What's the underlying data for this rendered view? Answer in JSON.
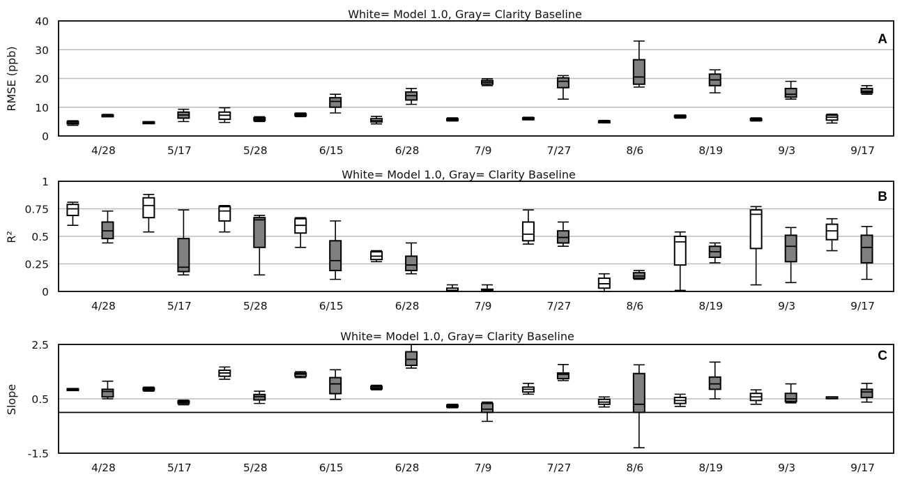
{
  "chart_data": [
    {
      "type": "box",
      "panel_label": "A",
      "title": "White= Model 1.0, Gray= Clarity Baseline",
      "ylabel": "RMSE (ppb)",
      "ylim": [
        0,
        40
      ],
      "yticks": [
        0,
        10,
        20,
        30,
        40
      ],
      "grid": true,
      "categories": [
        "4/28",
        "5/17",
        "5/28",
        "6/15",
        "6/28",
        "7/9",
        "7/27",
        "8/6",
        "8/19",
        "9/3",
        "9/17"
      ],
      "series": [
        {
          "color": "#ffffff",
          "boxes": [
            [
              3.7,
              4.2,
              4.5,
              5.0,
              5.3
            ],
            [
              4.5,
              4.6,
              4.7,
              4.9,
              5.0
            ],
            [
              4.7,
              5.8,
              7.2,
              8.3,
              9.8
            ],
            [
              6.7,
              7.0,
              7.3,
              7.7,
              8.0
            ],
            [
              4.2,
              4.9,
              5.4,
              6.0,
              6.8
            ],
            [
              5.2,
              5.5,
              5.8,
              6.0,
              6.3
            ],
            [
              5.6,
              5.9,
              6.1,
              6.3,
              6.5
            ],
            [
              4.6,
              4.8,
              5.0,
              5.2,
              5.4
            ],
            [
              6.2,
              6.5,
              6.8,
              7.1,
              7.3
            ],
            [
              5.2,
              5.5,
              5.8,
              6.0,
              6.3
            ],
            [
              4.5,
              5.5,
              6.5,
              7.2,
              7.6
            ]
          ]
        },
        {
          "color": "#808080",
          "boxes": [
            [
              7.0,
              7.1,
              7.2,
              7.3,
              7.5
            ],
            [
              5.0,
              6.2,
              7.3,
              8.3,
              9.3
            ],
            [
              5.0,
              5.4,
              5.8,
              6.3,
              6.7
            ],
            [
              8.0,
              10.0,
              12.0,
              13.3,
              14.5
            ],
            [
              11.0,
              12.5,
              14.0,
              15.3,
              16.5
            ],
            [
              17.5,
              18.0,
              18.7,
              19.3,
              19.9
            ],
            [
              12.8,
              16.8,
              19.0,
              20.2,
              21.0
            ],
            [
              17.0,
              18.0,
              20.5,
              26.5,
              33.0
            ],
            [
              15.0,
              17.5,
              19.5,
              21.5,
              23.0
            ],
            [
              12.8,
              13.5,
              14.5,
              16.5,
              19.0
            ],
            [
              14.5,
              15.0,
              15.5,
              16.5,
              17.5
            ]
          ]
        }
      ]
    },
    {
      "type": "box",
      "panel_label": "B",
      "title": "White= Model 1.0, Gray= Clarity Baseline",
      "ylabel": "R²",
      "ylim": [
        0,
        1
      ],
      "yticks": [
        "0",
        "0.25",
        "0.5",
        "0.75",
        "1"
      ],
      "grid": true,
      "categories": [
        "4/28",
        "5/17",
        "5/28",
        "6/15",
        "6/28",
        "7/9",
        "7/27",
        "8/6",
        "8/19",
        "9/3",
        "9/17"
      ],
      "series": [
        {
          "color": "#ffffff",
          "boxes": [
            [
              0.6,
              0.69,
              0.75,
              0.79,
              0.81
            ],
            [
              0.54,
              0.67,
              0.78,
              0.85,
              0.88
            ],
            [
              0.54,
              0.64,
              0.73,
              0.77,
              0.78
            ],
            [
              0.4,
              0.53,
              0.6,
              0.66,
              0.67
            ],
            [
              0.27,
              0.29,
              0.32,
              0.36,
              0.37
            ],
            [
              0.0,
              0.003,
              0.01,
              0.03,
              0.06
            ],
            [
              0.43,
              0.46,
              0.52,
              0.63,
              0.74
            ],
            [
              0.0,
              0.03,
              0.07,
              0.12,
              0.16
            ],
            [
              0.01,
              0.24,
              0.45,
              0.5,
              0.54
            ],
            [
              0.06,
              0.39,
              0.7,
              0.74,
              0.77
            ],
            [
              0.37,
              0.47,
              0.55,
              0.61,
              0.66
            ]
          ]
        },
        {
          "color": "#808080",
          "boxes": [
            [
              0.44,
              0.48,
              0.55,
              0.63,
              0.73
            ],
            [
              0.15,
              0.18,
              0.22,
              0.48,
              0.74
            ],
            [
              0.15,
              0.4,
              0.65,
              0.67,
              0.69
            ],
            [
              0.11,
              0.19,
              0.28,
              0.46,
              0.64
            ],
            [
              0.16,
              0.19,
              0.24,
              0.32,
              0.44
            ],
            [
              0.0,
              0.003,
              0.01,
              0.02,
              0.06
            ],
            [
              0.41,
              0.44,
              0.49,
              0.55,
              0.63
            ],
            [
              0.11,
              0.12,
              0.14,
              0.17,
              0.19
            ],
            [
              0.26,
              0.31,
              0.36,
              0.41,
              0.44
            ],
            [
              0.08,
              0.27,
              0.41,
              0.51,
              0.58
            ],
            [
              0.11,
              0.26,
              0.4,
              0.51,
              0.59
            ]
          ]
        }
      ]
    },
    {
      "type": "box",
      "panel_label": "C",
      "title": "White= Model 1.0, Gray= Clarity Baseline",
      "ylabel": "Slope",
      "ylim": [
        -1.5,
        2.5
      ],
      "yticks": [
        "-1.5",
        "0.5",
        "2.5"
      ],
      "grid": true,
      "reference_line_y": 0,
      "categories": [
        "4/28",
        "5/17",
        "5/28",
        "6/15",
        "6/28",
        "7/9",
        "7/27",
        "8/6",
        "8/19",
        "9/3",
        "9/17"
      ],
      "series": [
        {
          "color": "#ffffff",
          "boxes": [
            [
              0.82,
              0.84,
              0.85,
              0.87,
              0.88
            ],
            [
              0.78,
              0.82,
              0.86,
              0.9,
              0.93
            ],
            [
              1.22,
              1.33,
              1.45,
              1.55,
              1.67
            ],
            [
              1.28,
              1.33,
              1.4,
              1.45,
              1.5
            ],
            [
              0.83,
              0.87,
              0.91,
              0.96,
              1.0
            ],
            [
              0.17,
              0.2,
              0.23,
              0.27,
              0.3
            ],
            [
              0.67,
              0.75,
              0.85,
              0.93,
              1.07
            ],
            [
              0.2,
              0.3,
              0.38,
              0.48,
              0.57
            ],
            [
              0.22,
              0.33,
              0.44,
              0.55,
              0.67
            ],
            [
              0.3,
              0.44,
              0.57,
              0.7,
              0.83
            ],
            [
              0.55,
              0.56,
              0.56,
              0.57,
              0.57
            ]
          ]
        },
        {
          "color": "#808080",
          "boxes": [
            [
              0.5,
              0.57,
              0.77,
              0.85,
              1.15
            ],
            [
              0.28,
              0.33,
              0.38,
              0.42,
              0.45
            ],
            [
              0.33,
              0.46,
              0.58,
              0.66,
              0.78
            ],
            [
              0.48,
              0.69,
              1.05,
              1.28,
              1.57
            ],
            [
              1.63,
              1.73,
              1.95,
              2.23,
              2.5
            ],
            [
              -0.33,
              0.0,
              0.12,
              0.33,
              0.38
            ],
            [
              1.17,
              1.24,
              1.4,
              1.45,
              1.76
            ],
            [
              -1.3,
              0.0,
              0.3,
              1.43,
              1.75
            ],
            [
              0.5,
              0.85,
              1.05,
              1.3,
              1.85
            ],
            [
              0.35,
              0.4,
              0.5,
              0.7,
              1.05
            ],
            [
              0.38,
              0.55,
              0.75,
              0.85,
              1.07
            ]
          ]
        }
      ]
    }
  ]
}
